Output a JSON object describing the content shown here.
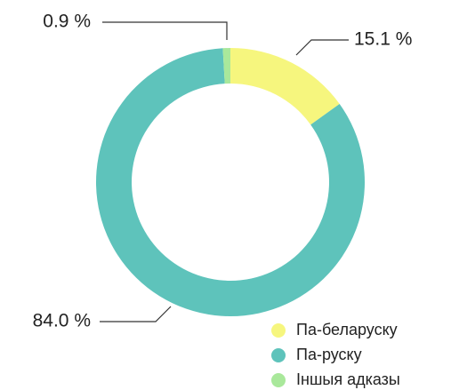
{
  "chart_data": {
    "type": "pie",
    "categories": [
      "Па-беларуску",
      "Па-руску",
      "Іншыя адказы"
    ],
    "values": [
      15.1,
      84.0,
      0.9
    ],
    "value_labels": [
      "15.1 %",
      "84.0 %",
      "0.9 %"
    ],
    "colors": [
      "#f6f67e",
      "#5ec3bb",
      "#a9e89b"
    ],
    "donut": true
  }
}
